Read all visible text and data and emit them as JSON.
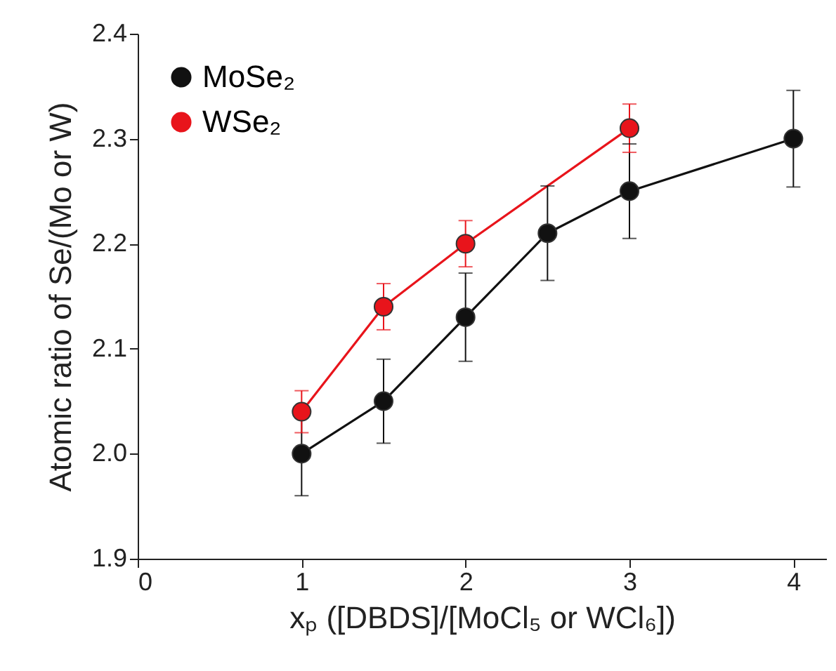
{
  "chart_data": {
    "type": "line",
    "xlabel": "xₚ ([DBDS]/[MoCl₅ or WCl₆])",
    "ylabel": "Atomic ratio of Se/(Mo or W)",
    "xlim": [
      0,
      4.2
    ],
    "xticks": [
      0,
      1,
      2,
      3,
      4
    ],
    "ylim": [
      1.9,
      2.4
    ],
    "yticks": [
      1.9,
      {
        "value": 2.0,
        "label": "2.0"
      },
      2.1,
      2.2,
      2.3,
      2.4
    ],
    "legend": "top left",
    "marker": "circle",
    "series": [
      {
        "name": "MoSe₂",
        "color": "#111111",
        "x": [
          1,
          1.5,
          2,
          2.5,
          3,
          4
        ],
        "values": [
          2.0,
          2.05,
          2.13,
          2.21,
          2.25,
          2.3
        ],
        "errors": [
          0.04,
          0.04,
          0.042,
          0.045,
          0.045,
          0.046
        ]
      },
      {
        "name": "WSe₂",
        "color": "#e8141b",
        "x": [
          1,
          1.5,
          2,
          3
        ],
        "values": [
          2.04,
          2.14,
          2.2,
          2.31
        ],
        "errors": [
          0.02,
          0.022,
          0.022,
          0.023
        ]
      }
    ]
  }
}
